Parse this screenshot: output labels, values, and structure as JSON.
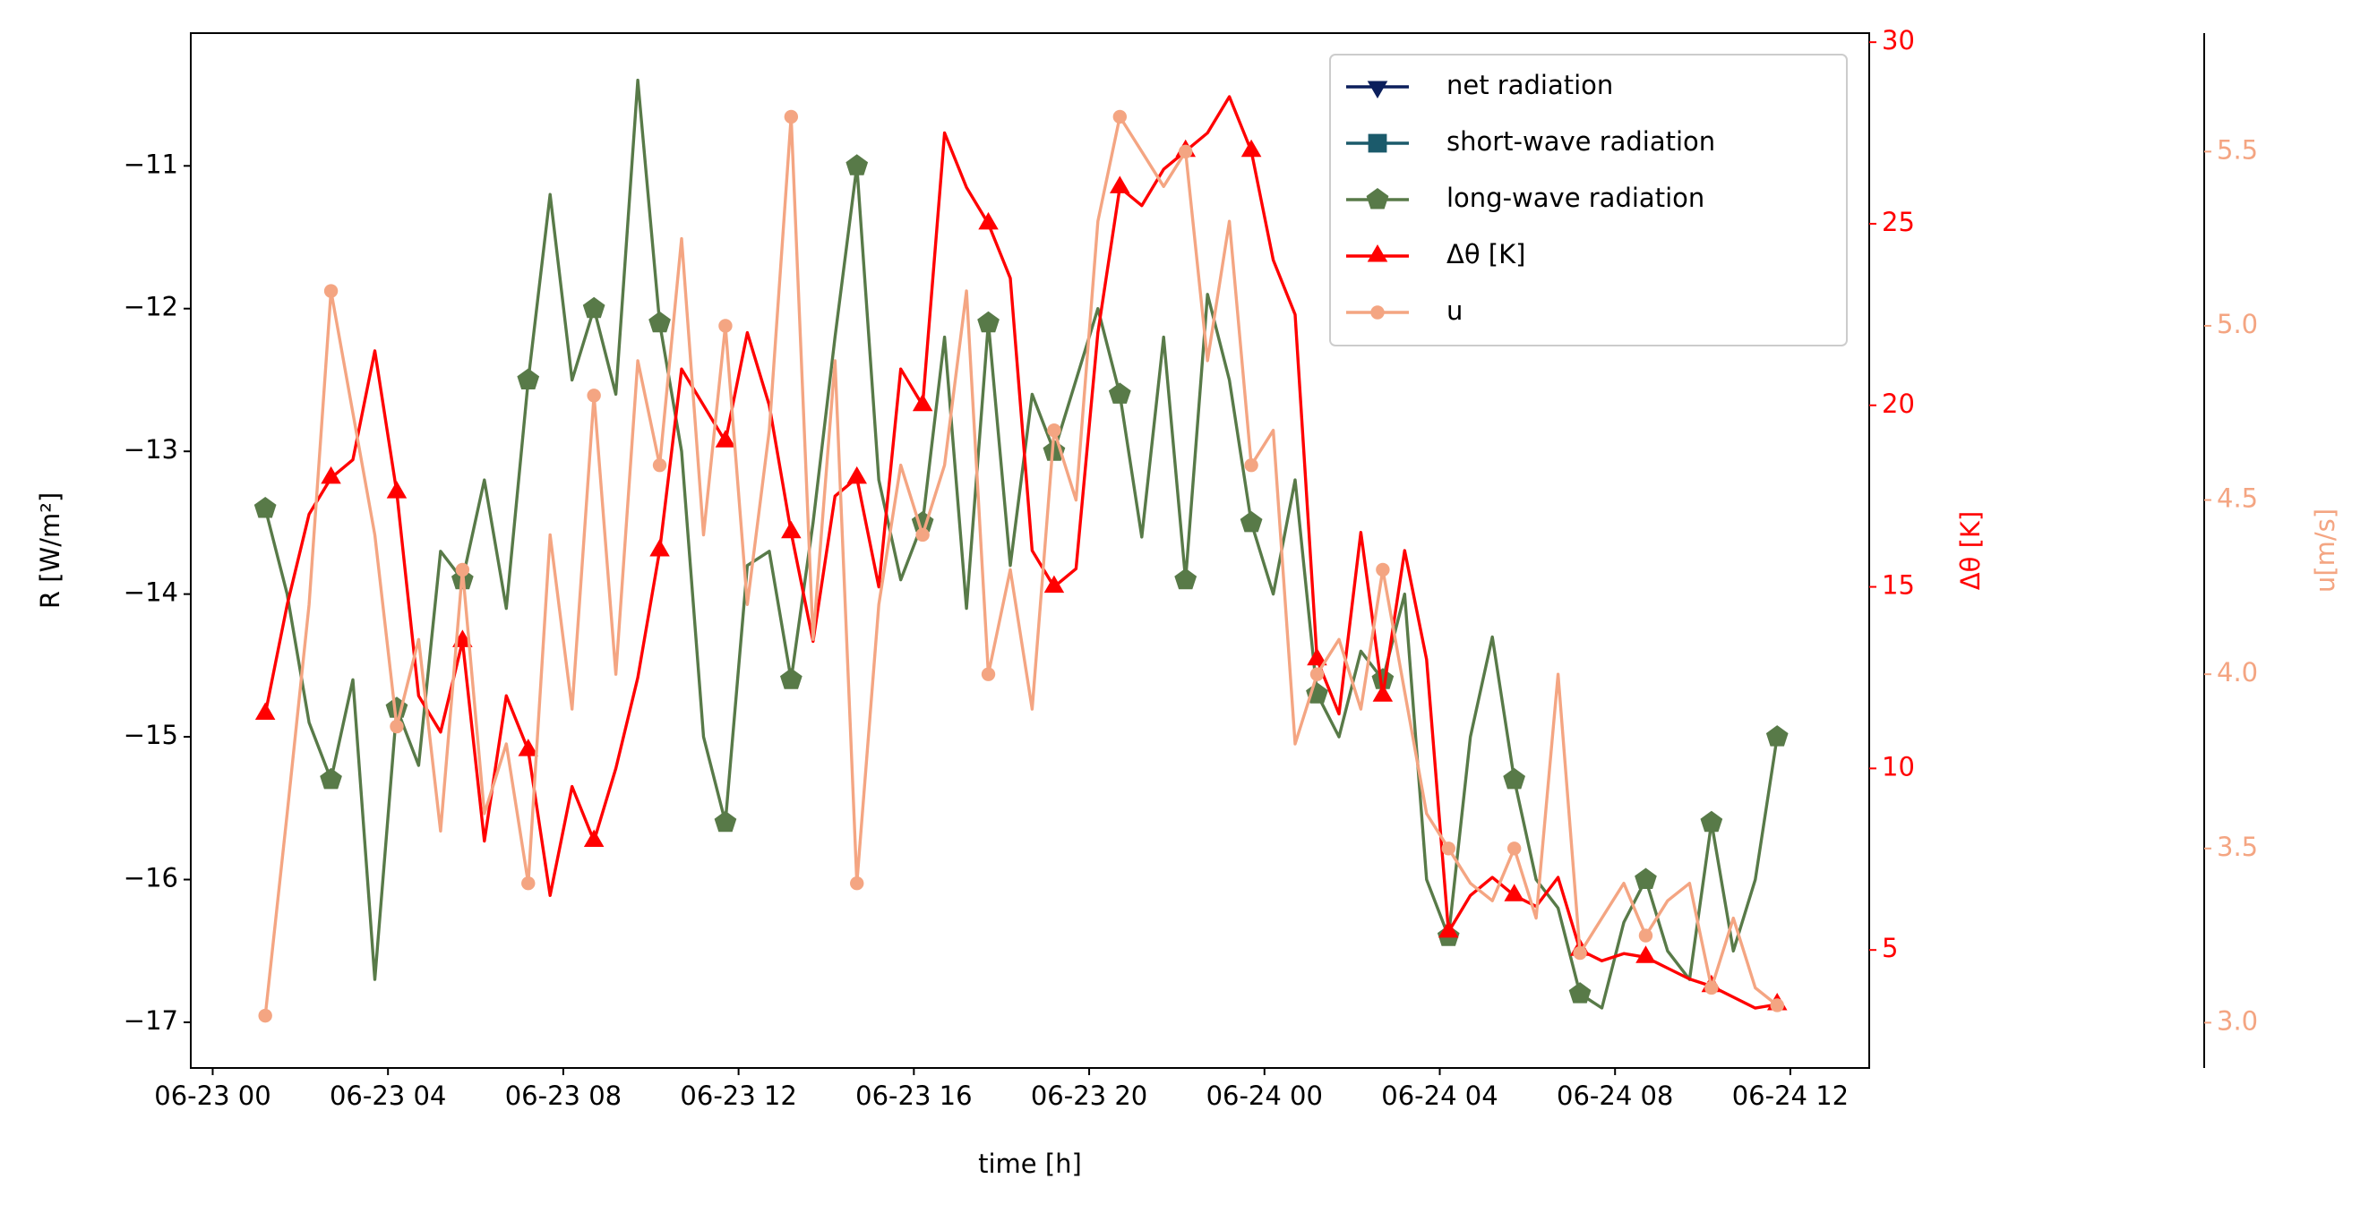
{
  "chart_data": {
    "type": "line",
    "xlabel": "time [h]",
    "ylabel": "R [W/m²]",
    "y2label": "Δθ [K]",
    "y3label": "u[m/s]",
    "xlim": [
      -0.5,
      37.8
    ],
    "xticks": [
      {
        "value": 0,
        "label": "06-23 00"
      },
      {
        "value": 4,
        "label": "06-23 04"
      },
      {
        "value": 8,
        "label": "06-23 08"
      },
      {
        "value": 12,
        "label": "06-23 12"
      },
      {
        "value": 16,
        "label": "06-23 16"
      },
      {
        "value": 20,
        "label": "06-23 20"
      },
      {
        "value": 24,
        "label": "06-24 00"
      },
      {
        "value": 28,
        "label": "06-24 04"
      },
      {
        "value": 32,
        "label": "06-24 08"
      },
      {
        "value": 36,
        "label": "06-24 12"
      }
    ],
    "ylim": [
      -17.32,
      -10.07
    ],
    "yticks": [
      {
        "value": -17,
        "label": "−17"
      },
      {
        "value": -16,
        "label": "−16"
      },
      {
        "value": -15,
        "label": "−15"
      },
      {
        "value": -14,
        "label": "−14"
      },
      {
        "value": -13,
        "label": "−13"
      },
      {
        "value": -12,
        "label": "−12"
      },
      {
        "value": -11,
        "label": "−11"
      }
    ],
    "y2lim": [
      1.75,
      30.25
    ],
    "y2ticks": [
      5,
      10,
      15,
      20,
      25,
      30
    ],
    "y2color": "#ff0000",
    "y3lim": [
      2.87,
      5.84
    ],
    "y3ticks": [
      {
        "value": 3,
        "label": "3.0"
      },
      3.5,
      {
        "value": 4,
        "label": "4.0"
      },
      4.5,
      {
        "value": 5,
        "label": "5.0"
      },
      5.5
    ],
    "y3color": "#f4a582",
    "legend": "upper right",
    "x": [
      1.2,
      1.7,
      2.2,
      2.7,
      3.2,
      3.7,
      4.2,
      4.7,
      5.2,
      5.7,
      6.2,
      6.7,
      7.2,
      7.7,
      8.2,
      8.7,
      9.2,
      9.7,
      10.2,
      10.7,
      11.2,
      11.7,
      12.2,
      12.7,
      13.2,
      13.7,
      14.2,
      14.7,
      15.2,
      15.7,
      16.2,
      16.7,
      17.2,
      17.7,
      18.2,
      18.7,
      19.2,
      19.7,
      20.2,
      20.7,
      21.2,
      21.7,
      22.2,
      22.7,
      23.2,
      23.7,
      24.2,
      24.7,
      25.2,
      25.7,
      26.2,
      26.7,
      27.2,
      27.7,
      28.2,
      28.7,
      29.2,
      29.7,
      30.2,
      30.7,
      31.2,
      31.7,
      32.2,
      32.7,
      33.2,
      33.7,
      34.2,
      34.7,
      35.2,
      35.7
    ],
    "series": [
      {
        "name": "net radiation",
        "color": "#0b1f5c",
        "marker": "triangle-down",
        "axis": "y",
        "values": [
          null,
          null,
          null,
          null,
          null,
          null,
          null,
          null,
          null,
          null,
          null,
          null,
          null,
          null,
          null,
          null,
          null,
          null,
          null,
          null,
          null,
          null,
          null,
          null,
          null,
          null,
          null,
          null,
          null,
          null,
          null,
          null,
          null,
          null,
          null,
          null,
          null,
          null,
          null,
          null,
          null,
          null,
          null,
          null,
          null,
          null,
          null,
          null,
          null,
          null,
          null,
          null,
          null,
          null,
          null,
          null,
          null,
          null,
          null,
          null,
          null,
          null,
          null,
          null,
          null,
          null,
          null,
          null,
          null,
          null
        ]
      },
      {
        "name": "short-wave radiation",
        "color": "#1b5a6b",
        "marker": "square",
        "axis": "y",
        "values": [
          null,
          null,
          null,
          null,
          null,
          null,
          null,
          null,
          null,
          null,
          null,
          null,
          null,
          null,
          null,
          null,
          null,
          null,
          null,
          null,
          null,
          null,
          null,
          null,
          null,
          null,
          null,
          null,
          null,
          null,
          null,
          null,
          null,
          null,
          null,
          null,
          null,
          null,
          null,
          null,
          null,
          null,
          null,
          null,
          null,
          null,
          null,
          null,
          null,
          null,
          null,
          null,
          null,
          null,
          null,
          null,
          null,
          null,
          null,
          null,
          null,
          null,
          null,
          null,
          null,
          null,
          null,
          null,
          null,
          null
        ]
      },
      {
        "name": "long-wave radiation",
        "color": "#587a48",
        "marker": "pentagon",
        "axis": "y",
        "values": [
          -13.4,
          -14.0,
          -14.9,
          -15.3,
          -14.6,
          -16.7,
          -14.8,
          -15.2,
          -13.7,
          -13.9,
          -13.2,
          -14.1,
          -12.5,
          -11.2,
          -12.5,
          -12.0,
          -12.6,
          -10.4,
          -12.1,
          -13.0,
          -15.0,
          -15.6,
          -13.8,
          -13.7,
          -14.6,
          -13.5,
          -12.2,
          -11.0,
          -13.2,
          -13.9,
          -13.5,
          -12.2,
          -14.1,
          -12.1,
          -13.8,
          -12.6,
          -13.0,
          -12.5,
          -12.0,
          -12.6,
          -13.6,
          -12.2,
          -13.9,
          -11.9,
          -12.5,
          -13.5,
          -14.0,
          -13.2,
          -14.7,
          -15.0,
          -14.4,
          -14.6,
          -14.0,
          -16.0,
          -16.4,
          -15.0,
          -14.3,
          -15.3,
          -16.0,
          -16.2,
          -16.8,
          -16.9,
          -16.3,
          -16.0,
          -16.5,
          -16.7,
          -15.6,
          -16.5,
          -16.0,
          -15.0
        ]
      },
      {
        "name": "Δθ [K]",
        "color": "#ff0000",
        "marker": "triangle-up",
        "axis": "y2",
        "values": [
          11.5,
          14.5,
          17.0,
          18.0,
          18.5,
          21.5,
          17.6,
          12.0,
          11.0,
          13.5,
          8.0,
          12.0,
          10.5,
          6.5,
          9.5,
          8.0,
          10.0,
          12.5,
          16.0,
          21.0,
          20.0,
          19.0,
          22.0,
          20.0,
          16.5,
          13.5,
          17.5,
          18.0,
          15.0,
          21.0,
          20.0,
          27.5,
          26.0,
          25.0,
          23.5,
          16.0,
          15.0,
          15.5,
          22.0,
          26.0,
          25.5,
          26.5,
          27.0,
          27.5,
          28.5,
          27.0,
          24.0,
          22.5,
          13.0,
          11.5,
          16.5,
          12.0,
          16.0,
          13.0,
          5.5,
          6.5,
          7.0,
          6.5,
          6.2,
          7.0,
          5.0,
          4.7,
          4.9,
          4.8,
          4.5,
          4.2,
          4.0,
          3.7,
          3.4,
          3.5
        ]
      },
      {
        "name": "u",
        "color": "#f4a582",
        "marker": "circle",
        "axis": "y3",
        "values": [
          3.02,
          3.6,
          4.2,
          5.1,
          4.75,
          4.4,
          3.85,
          4.1,
          3.55,
          4.3,
          3.6,
          3.8,
          3.4,
          4.4,
          3.9,
          4.8,
          4.0,
          4.9,
          4.6,
          5.25,
          4.4,
          5.0,
          4.2,
          4.7,
          5.6,
          4.1,
          4.9,
          3.4,
          4.2,
          4.6,
          4.4,
          4.6,
          5.1,
          4.0,
          4.3,
          3.9,
          4.7,
          4.5,
          5.3,
          5.6,
          5.5,
          5.4,
          5.5,
          4.9,
          5.3,
          4.6,
          4.7,
          3.8,
          4.0,
          4.1,
          3.9,
          4.3,
          3.95,
          3.6,
          3.5,
          3.4,
          3.35,
          3.5,
          3.3,
          4.0,
          3.2,
          3.3,
          3.4,
          3.25,
          3.35,
          3.4,
          3.1,
          3.3,
          3.1,
          3.05
        ]
      }
    ]
  }
}
